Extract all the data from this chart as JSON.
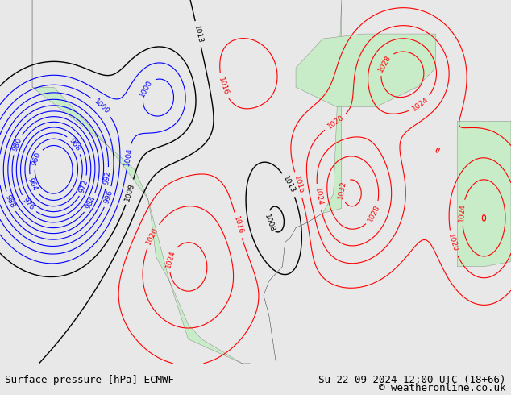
{
  "title_left": "Surface pressure [hPa] ECMWF",
  "title_right": "Su 22-09-2024 12:00 UTC (18+66)",
  "copyright": "© weatheronline.co.uk",
  "bg_color": "#e8e8e8",
  "map_bg": "#d0e8f8",
  "land_color": "#c8ebc8",
  "label_fontsize": 9,
  "title_fontsize": 9,
  "fig_width": 6.34,
  "fig_height": 4.9
}
